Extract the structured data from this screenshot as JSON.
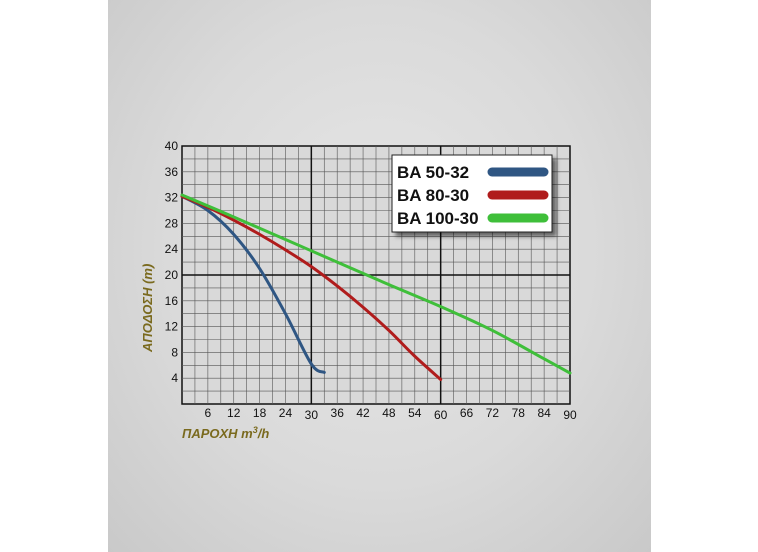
{
  "chart_data": {
    "type": "line",
    "xlabel": "ΠΑΡΟΧΗ m",
    "xlabel_sup": "3",
    "xlabel_suffix": "/h",
    "ylabel": "ΑΠΟΔΟΣΗ (m)",
    "xlim": [
      0,
      90
    ],
    "ylim": [
      0,
      40
    ],
    "x_ticks": [
      6,
      12,
      18,
      24,
      30,
      36,
      42,
      48,
      54,
      60,
      66,
      72,
      78,
      84,
      90
    ],
    "y_ticks": [
      4,
      8,
      12,
      16,
      20,
      24,
      28,
      32,
      36,
      40
    ],
    "grid": true,
    "legend_position": "top-right",
    "series": [
      {
        "name": "BA 50-32",
        "color": "#2f5683",
        "x": [
          0,
          6,
          12,
          18,
          24,
          30,
          33
        ],
        "y": [
          32.2,
          30.0,
          26.3,
          21.0,
          14.0,
          6.2,
          4.9
        ]
      },
      {
        "name": "BA 80-30",
        "color": "#b01c1c",
        "x": [
          0,
          6,
          12,
          18,
          24,
          30,
          36,
          42,
          48,
          54,
          60
        ],
        "y": [
          32.2,
          30.5,
          28.5,
          26.3,
          23.9,
          21.3,
          18.3,
          15.0,
          11.4,
          7.4,
          3.8
        ]
      },
      {
        "name": "BA 100-30",
        "color": "#3fbf3a",
        "x": [
          0,
          12,
          24,
          36,
          48,
          60,
          72,
          84,
          90
        ],
        "y": [
          32.4,
          29.0,
          25.5,
          22.0,
          18.5,
          15.1,
          11.4,
          7.0,
          4.8
        ]
      }
    ]
  }
}
